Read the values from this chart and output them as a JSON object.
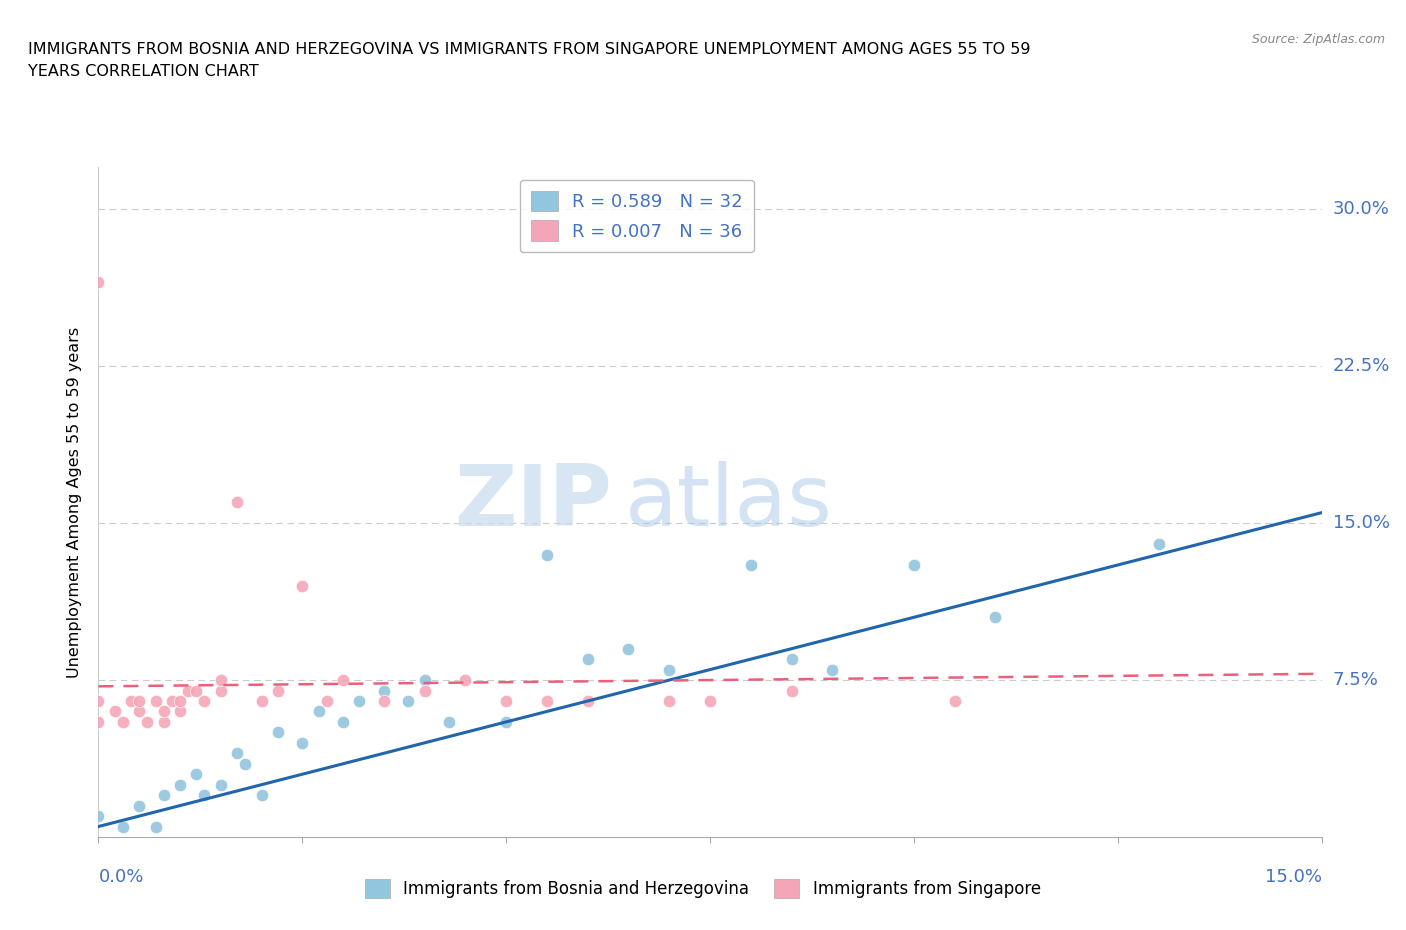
{
  "title": "IMMIGRANTS FROM BOSNIA AND HERZEGOVINA VS IMMIGRANTS FROM SINGAPORE UNEMPLOYMENT AMONG AGES 55 TO 59\nYEARS CORRELATION CHART",
  "source": "Source: ZipAtlas.com",
  "ylabel": "Unemployment Among Ages 55 to 59 years",
  "yticks": [
    0.0,
    0.075,
    0.15,
    0.225,
    0.3
  ],
  "ytick_labels": [
    "",
    "7.5%",
    "15.0%",
    "22.5%",
    "30.0%"
  ],
  "xlim": [
    0.0,
    0.15
  ],
  "ylim": [
    0.0,
    0.32
  ],
  "legend1_r": "R = 0.589",
  "legend1_n": "N = 32",
  "legend2_r": "R = 0.007",
  "legend2_n": "N = 36",
  "bosnia_color": "#92C5DE",
  "singapore_color": "#F4A6B8",
  "bosnia_line_color": "#2166AC",
  "singapore_line_color": "#E8607A",
  "watermark_zip": "ZIP",
  "watermark_atlas": "atlas",
  "bosnia_scatter_x": [
    0.0,
    0.003,
    0.005,
    0.007,
    0.008,
    0.01,
    0.012,
    0.013,
    0.015,
    0.017,
    0.018,
    0.02,
    0.022,
    0.025,
    0.027,
    0.03,
    0.032,
    0.035,
    0.038,
    0.04,
    0.043,
    0.05,
    0.055,
    0.06,
    0.065,
    0.07,
    0.08,
    0.085,
    0.09,
    0.1,
    0.11,
    0.13
  ],
  "bosnia_scatter_y": [
    0.01,
    0.005,
    0.015,
    0.005,
    0.02,
    0.025,
    0.03,
    0.02,
    0.025,
    0.04,
    0.035,
    0.02,
    0.05,
    0.045,
    0.06,
    0.055,
    0.065,
    0.07,
    0.065,
    0.075,
    0.055,
    0.055,
    0.135,
    0.085,
    0.09,
    0.08,
    0.13,
    0.085,
    0.08,
    0.13,
    0.105,
    0.14
  ],
  "singapore_scatter_x": [
    0.0,
    0.0,
    0.0,
    0.002,
    0.003,
    0.004,
    0.005,
    0.005,
    0.006,
    0.007,
    0.008,
    0.008,
    0.009,
    0.01,
    0.01,
    0.011,
    0.012,
    0.013,
    0.015,
    0.015,
    0.017,
    0.02,
    0.022,
    0.025,
    0.028,
    0.03,
    0.035,
    0.04,
    0.045,
    0.05,
    0.055,
    0.06,
    0.07,
    0.075,
    0.085,
    0.105
  ],
  "singapore_scatter_y": [
    0.265,
    0.065,
    0.055,
    0.06,
    0.055,
    0.065,
    0.06,
    0.065,
    0.055,
    0.065,
    0.055,
    0.06,
    0.065,
    0.06,
    0.065,
    0.07,
    0.07,
    0.065,
    0.07,
    0.075,
    0.16,
    0.065,
    0.07,
    0.12,
    0.065,
    0.075,
    0.065,
    0.07,
    0.075,
    0.065,
    0.065,
    0.065,
    0.065,
    0.065,
    0.07,
    0.065
  ],
  "bosnia_trend_x": [
    0.0,
    0.15
  ],
  "bosnia_trend_y": [
    0.005,
    0.155
  ],
  "singapore_trend_x": [
    0.0,
    0.15
  ],
  "singapore_trend_y": [
    0.072,
    0.078
  ]
}
